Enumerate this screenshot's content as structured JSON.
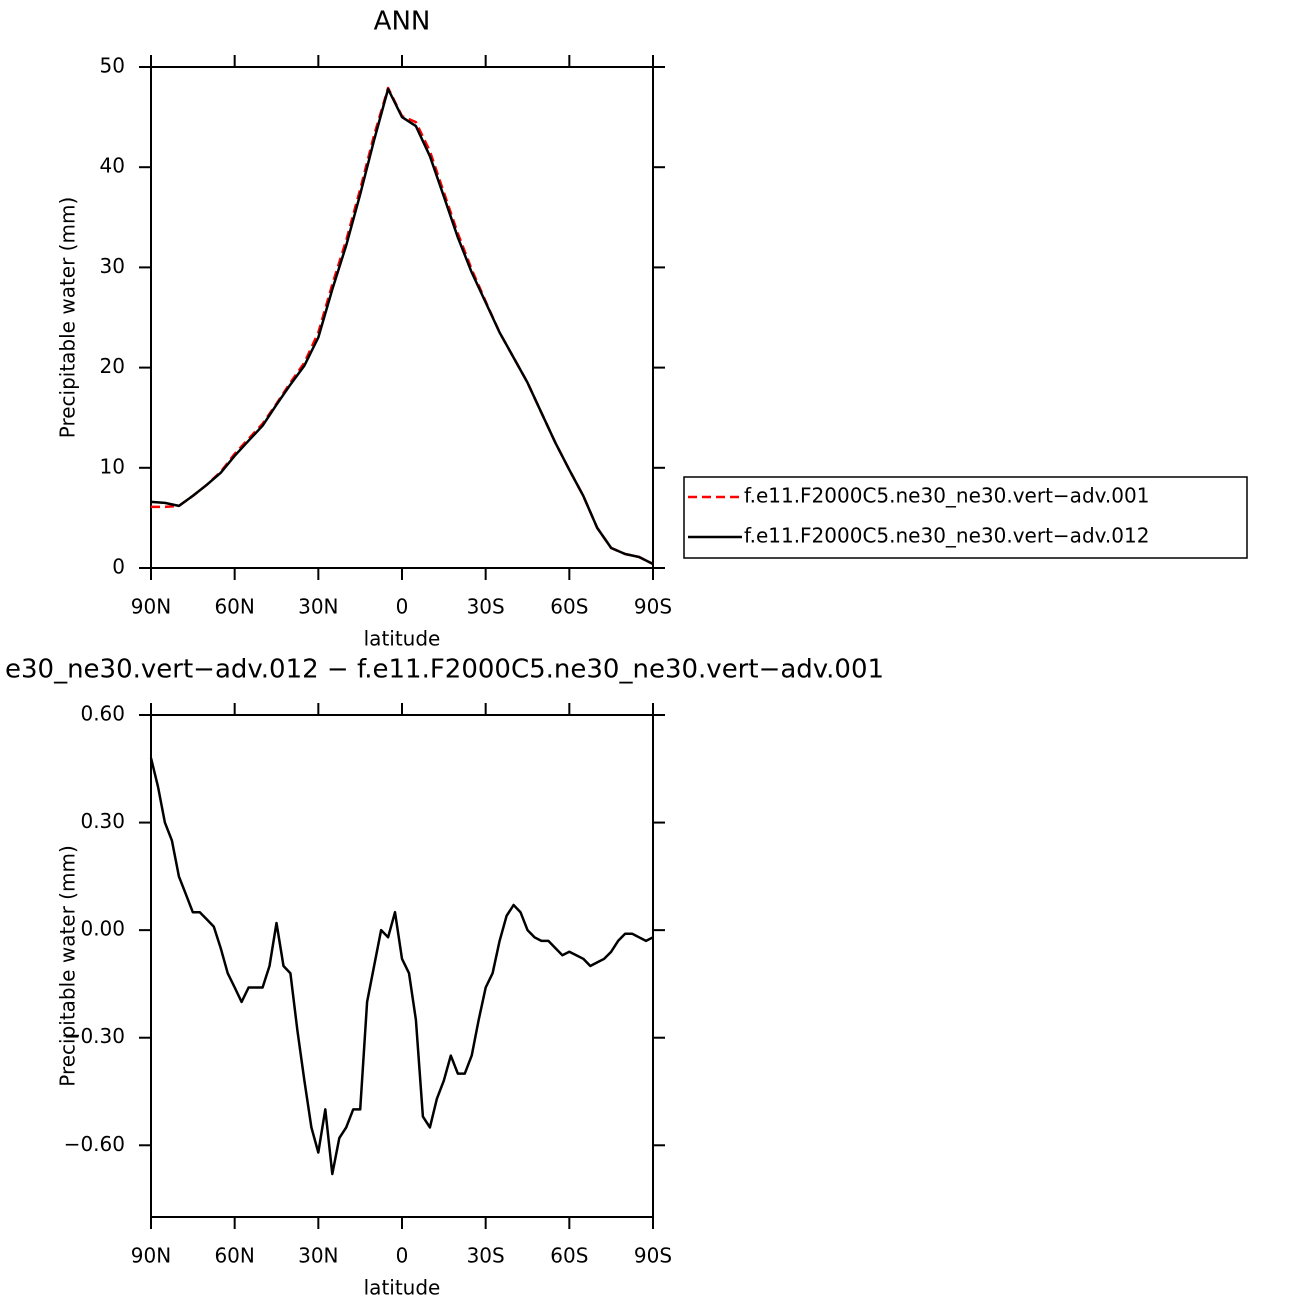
{
  "chart_data": [
    {
      "type": "line",
      "title": "ANN",
      "xlabel": "latitude",
      "ylabel": "Precipitable water (mm)",
      "x": [
        90,
        85,
        80,
        75,
        70,
        65,
        60,
        55,
        50,
        45,
        40,
        35,
        30,
        25,
        20,
        15,
        10,
        5,
        0,
        -5,
        -10,
        -15,
        -20,
        -25,
        -30,
        -35,
        -40,
        -45,
        -50,
        -55,
        -60,
        -65,
        -70,
        -75,
        -80,
        -85,
        -90
      ],
      "series": [
        {
          "name": "f.e11.F2000C5.ne30_ne30.vert−adv.001",
          "color": "#ff0000",
          "style": "dashed",
          "values": [
            6.1,
            6.1,
            6.2,
            7.2,
            8.3,
            9.6,
            11.4,
            12.9,
            14.4,
            16.4,
            18.5,
            20.5,
            23.5,
            28.3,
            32.7,
            37.8,
            43.2,
            47.9,
            45.1,
            44.5,
            41.6,
            37.5,
            33.4,
            29.8,
            26.6,
            23.5,
            21.0,
            18.5,
            15.5,
            12.5,
            9.8,
            7.2,
            4.0,
            2.0,
            1.4,
            1.1,
            0.4
          ]
        },
        {
          "name": "f.e11.F2000C5.ne30_ne30.vert−adv.012",
          "color": "#000000",
          "style": "solid",
          "values": [
            6.6,
            6.5,
            6.2,
            7.2,
            8.3,
            9.5,
            11.2,
            12.7,
            14.2,
            16.3,
            18.3,
            20.2,
            23.0,
            27.8,
            32.2,
            37.3,
            42.7,
            47.8,
            45.0,
            44.1,
            41.1,
            37.1,
            33.0,
            29.5,
            26.5,
            23.5,
            21.0,
            18.5,
            15.5,
            12.5,
            9.8,
            7.2,
            4.0,
            2.0,
            1.4,
            1.1,
            0.4
          ]
        }
      ],
      "xlim": [
        90,
        -90
      ],
      "xticks": [
        {
          "value": 90,
          "label": "90N"
        },
        {
          "value": 60,
          "label": "60N"
        },
        {
          "value": 30,
          "label": "30N"
        },
        0,
        {
          "value": -30,
          "label": "30S"
        },
        {
          "value": -60,
          "label": "60S"
        },
        {
          "value": -90,
          "label": "90S"
        }
      ],
      "ylim": [
        0,
        50
      ],
      "yticks": [
        0,
        10,
        20,
        30,
        40,
        50
      ],
      "legend": "right"
    },
    {
      "type": "line",
      "title": "e30_ne30.vert−adv.012 − f.e11.F2000C5.ne30_ne30.vert−adv.001",
      "xlabel": "latitude",
      "ylabel": "Precipitable water (mm)",
      "x": [
        90,
        87.5,
        85,
        82.5,
        80,
        77.5,
        75,
        72.5,
        70,
        67.5,
        65,
        62.5,
        60,
        57.5,
        55,
        52.5,
        50,
        47.5,
        45,
        42.5,
        40,
        37.5,
        35,
        32.5,
        30,
        27.5,
        25,
        22.5,
        20,
        17.5,
        15,
        12.5,
        10,
        7.5,
        5,
        2.5,
        0,
        -2.5,
        -5,
        -7.5,
        -10,
        -12.5,
        -15,
        -17.5,
        -20,
        -22.5,
        -25,
        -27.5,
        -30,
        -32.5,
        -35,
        -37.5,
        -40,
        -42.5,
        -45,
        -47.5,
        -50,
        -52.5,
        -55,
        -57.5,
        -60,
        -62.5,
        -65,
        -67.5,
        -70,
        -72.5,
        -75,
        -77.5,
        -80,
        -82.5,
        -85,
        -87.5,
        -90
      ],
      "series": [
        {
          "color": "#000000",
          "style": "solid",
          "values": [
            0.48,
            0.4,
            0.3,
            0.25,
            0.15,
            0.1,
            0.05,
            0.05,
            0.03,
            0.01,
            -0.05,
            -0.12,
            -0.16,
            -0.2,
            -0.16,
            -0.16,
            -0.16,
            -0.1,
            0.02,
            -0.1,
            -0.12,
            -0.28,
            -0.42,
            -0.55,
            -0.62,
            -0.5,
            -0.68,
            -0.58,
            -0.55,
            -0.5,
            -0.5,
            -0.2,
            -0.1,
            0.0,
            -0.02,
            0.05,
            -0.08,
            -0.12,
            -0.25,
            -0.52,
            -0.55,
            -0.47,
            -0.42,
            -0.35,
            -0.4,
            -0.4,
            -0.35,
            -0.25,
            -0.16,
            -0.12,
            -0.03,
            0.04,
            0.07,
            0.05,
            0.0,
            -0.02,
            -0.03,
            -0.03,
            -0.05,
            -0.07,
            -0.06,
            -0.07,
            -0.08,
            -0.1,
            -0.09,
            -0.08,
            -0.06,
            -0.03,
            -0.01,
            -0.01,
            -0.02,
            -0.03,
            -0.02
          ]
        }
      ],
      "xlim": [
        90,
        -90
      ],
      "xticks": [
        {
          "value": 90,
          "label": "90N"
        },
        {
          "value": 60,
          "label": "60N"
        },
        {
          "value": 30,
          "label": "30N"
        },
        0,
        {
          "value": -30,
          "label": "30S"
        },
        {
          "value": -60,
          "label": "60S"
        },
        {
          "value": -90,
          "label": "90S"
        }
      ],
      "ylim": [
        -0.8,
        0.6
      ],
      "yticks": [
        {
          "value": 0.6,
          "label": "0.60"
        },
        {
          "value": 0.3,
          "label": "0.30"
        },
        {
          "value": 0,
          "label": "0.00"
        },
        {
          "value": -0.3,
          "label": "−0.30"
        },
        {
          "value": -0.6,
          "label": "−0.60"
        }
      ]
    }
  ]
}
